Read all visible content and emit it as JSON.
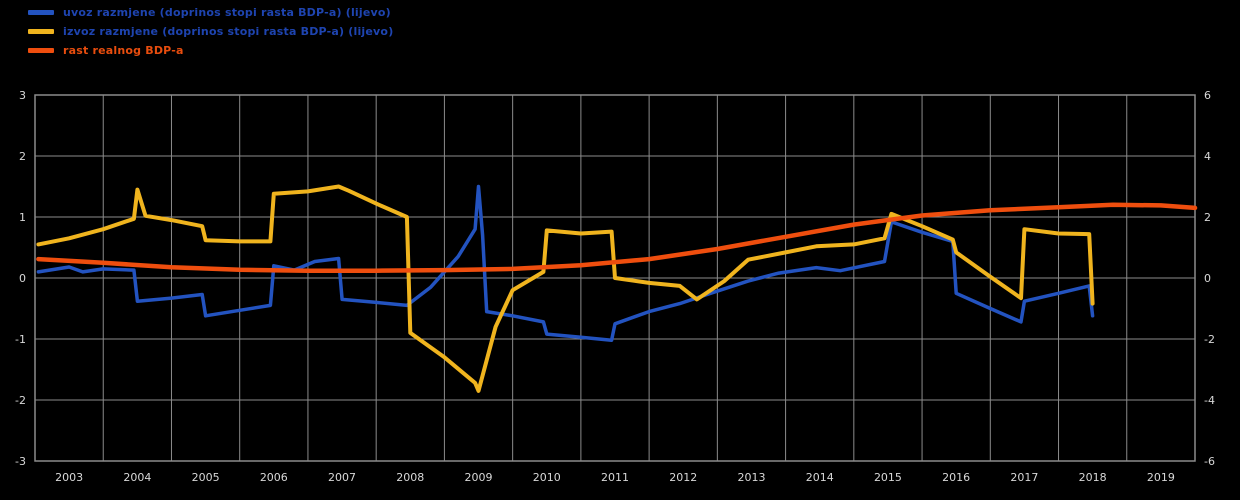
{
  "legend": {
    "items": [
      {
        "label": "uvoz razmjene (doprinos stopi rasta BDP-a) (lijevo)",
        "color": "#1e44b0"
      },
      {
        "label": "izvoz razmjene (doprinos stopi rasta BDP-a) (lijevo)",
        "color": "#1e44b0"
      },
      {
        "label": "rast realnog BDP-a",
        "color": "#e84d0e"
      }
    ]
  },
  "chart_data": {
    "type": "line",
    "title": "",
    "background": "#000000",
    "colors": {
      "grid": "#8c8c8c",
      "tick": "#d8d8d8",
      "border": "#8c8c8c"
    },
    "x_axis": {
      "ticks": [
        2003,
        2004,
        2005,
        2006,
        2007,
        2008,
        2009,
        2010,
        2011,
        2012,
        2013,
        2014,
        2015,
        2016,
        2017,
        2018,
        2019
      ]
    },
    "y_axis_left": {
      "ticks": [
        3,
        2,
        1,
        0,
        -1,
        -2,
        -3
      ],
      "range": [
        -3,
        3
      ]
    },
    "y_axis_right": {
      "ticks": [
        6,
        4,
        2,
        0,
        -2,
        -4,
        -6
      ],
      "range": [
        -6,
        6
      ]
    },
    "series": [
      {
        "id": "imports-contribution",
        "name": "uvoz razmjene (doprinos stopi rasta BDP-a) (lijevo)",
        "color": "#2353c0",
        "axis": "left",
        "width": 3.5,
        "points": [
          [
            2002.55,
            0.1
          ],
          [
            2003.0,
            0.18
          ],
          [
            2003.2,
            0.1
          ],
          [
            2003.5,
            0.15
          ],
          [
            2003.95,
            0.13
          ],
          [
            2004.0,
            -0.38
          ],
          [
            2004.5,
            -0.33
          ],
          [
            2004.95,
            -0.27
          ],
          [
            2005.0,
            -0.62
          ],
          [
            2005.5,
            -0.53
          ],
          [
            2005.95,
            -0.45
          ],
          [
            2006.0,
            0.2
          ],
          [
            2006.3,
            0.13
          ],
          [
            2006.6,
            0.27
          ],
          [
            2006.95,
            0.32
          ],
          [
            2007.0,
            -0.35
          ],
          [
            2007.5,
            -0.4
          ],
          [
            2007.95,
            -0.45
          ],
          [
            2008.3,
            -0.15
          ],
          [
            2008.7,
            0.35
          ],
          [
            2008.95,
            0.8
          ],
          [
            2009.0,
            1.5
          ],
          [
            2009.06,
            0.7
          ],
          [
            2009.12,
            -0.55
          ],
          [
            2009.5,
            -0.62
          ],
          [
            2009.95,
            -0.72
          ],
          [
            2010.0,
            -0.92
          ],
          [
            2010.5,
            -0.97
          ],
          [
            2010.95,
            -1.02
          ],
          [
            2011.0,
            -0.75
          ],
          [
            2011.5,
            -0.55
          ],
          [
            2011.95,
            -0.42
          ],
          [
            2012.4,
            -0.25
          ],
          [
            2012.95,
            -0.05
          ],
          [
            2013.4,
            0.08
          ],
          [
            2013.95,
            0.17
          ],
          [
            2014.3,
            0.12
          ],
          [
            2014.95,
            0.27
          ],
          [
            2015.05,
            0.92
          ],
          [
            2015.5,
            0.75
          ],
          [
            2015.95,
            0.6
          ],
          [
            2016.0,
            -0.25
          ],
          [
            2016.5,
            -0.5
          ],
          [
            2016.95,
            -0.72
          ],
          [
            2017.0,
            -0.38
          ],
          [
            2017.5,
            -0.25
          ],
          [
            2017.95,
            -0.13
          ],
          [
            2018.0,
            -0.62
          ]
        ]
      },
      {
        "id": "exports-contribution",
        "name": "izvoz razmjene (doprinos stopi rasta BDP-a) (lijevo)",
        "color": "#f0b41e",
        "axis": "left",
        "width": 4,
        "points": [
          [
            2002.55,
            0.55
          ],
          [
            2003.0,
            0.65
          ],
          [
            2003.5,
            0.8
          ],
          [
            2003.95,
            0.97
          ],
          [
            2004.0,
            1.45
          ],
          [
            2004.12,
            1.02
          ],
          [
            2004.5,
            0.95
          ],
          [
            2004.95,
            0.85
          ],
          [
            2005.0,
            0.62
          ],
          [
            2005.5,
            0.6
          ],
          [
            2005.95,
            0.6
          ],
          [
            2006.0,
            1.38
          ],
          [
            2006.5,
            1.42
          ],
          [
            2006.95,
            1.5
          ],
          [
            2007.1,
            1.43
          ],
          [
            2007.5,
            1.22
          ],
          [
            2007.95,
            1.0
          ],
          [
            2008.0,
            -0.9
          ],
          [
            2008.5,
            -1.3
          ],
          [
            2008.95,
            -1.72
          ],
          [
            2009.0,
            -1.85
          ],
          [
            2009.25,
            -0.8
          ],
          [
            2009.5,
            -0.2
          ],
          [
            2009.95,
            0.1
          ],
          [
            2010.0,
            0.78
          ],
          [
            2010.5,
            0.73
          ],
          [
            2010.95,
            0.76
          ],
          [
            2011.0,
            0.0
          ],
          [
            2011.5,
            -0.08
          ],
          [
            2011.95,
            -0.13
          ],
          [
            2012.2,
            -0.35
          ],
          [
            2012.6,
            -0.05
          ],
          [
            2012.95,
            0.3
          ],
          [
            2013.5,
            0.42
          ],
          [
            2013.95,
            0.52
          ],
          [
            2014.5,
            0.55
          ],
          [
            2014.95,
            0.65
          ],
          [
            2015.05,
            1.05
          ],
          [
            2015.5,
            0.85
          ],
          [
            2015.95,
            0.63
          ],
          [
            2016.0,
            0.42
          ],
          [
            2016.5,
            0.02
          ],
          [
            2016.95,
            -0.33
          ],
          [
            2017.0,
            0.8
          ],
          [
            2017.5,
            0.73
          ],
          [
            2017.95,
            0.72
          ],
          [
            2018.0,
            -0.42
          ]
        ]
      },
      {
        "id": "real-gdp-growth",
        "name": "rast realnog BDP-a",
        "color": "#ef4e0e",
        "axis": "right",
        "width": 4.5,
        "points": [
          [
            2002.55,
            0.62
          ],
          [
            2003.5,
            0.5
          ],
          [
            2004.5,
            0.35
          ],
          [
            2005.5,
            0.27
          ],
          [
            2006.5,
            0.24
          ],
          [
            2007.5,
            0.24
          ],
          [
            2008.5,
            0.26
          ],
          [
            2009.5,
            0.3
          ],
          [
            2010.5,
            0.42
          ],
          [
            2011.5,
            0.62
          ],
          [
            2012.5,
            0.95
          ],
          [
            2013.5,
            1.35
          ],
          [
            2014.5,
            1.75
          ],
          [
            2015.5,
            2.05
          ],
          [
            2016.5,
            2.22
          ],
          [
            2017.5,
            2.32
          ],
          [
            2018.3,
            2.4
          ],
          [
            2019.0,
            2.38
          ],
          [
            2019.5,
            2.3
          ]
        ]
      }
    ]
  }
}
